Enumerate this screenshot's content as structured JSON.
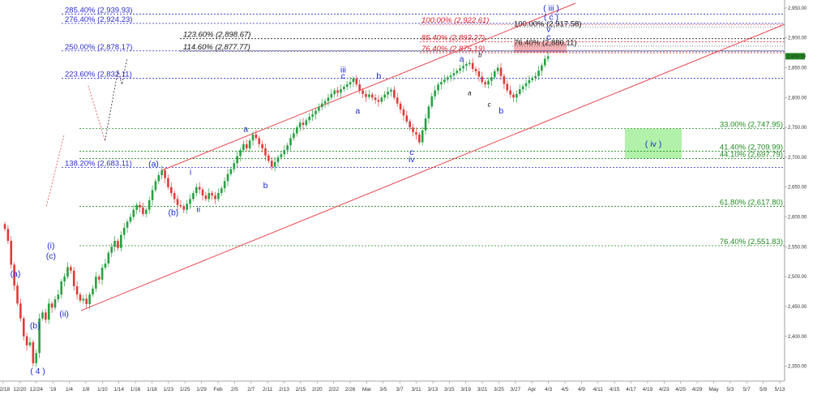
{
  "chart_data": {
    "type": "candlestick",
    "title": "",
    "colors": {
      "up": "#26a141",
      "down": "#e03a3a",
      "fib_blue": "#2b2bd6",
      "fib_green": "#1f8a1f",
      "fib_red": "#e0202a",
      "channel": "#e8474f",
      "wave": "#1c2bd0",
      "target_box_red": "#f5a3a8",
      "target_box_green": "#a8f0a0"
    },
    "x_ticks": [
      "12/18",
      "12/20",
      "12/24",
      "'19",
      "1/4",
      "1/8",
      "1/10",
      "1/14",
      "1/16",
      "1/18",
      "1/23",
      "1/25",
      "1/29",
      "Feb",
      "2/5",
      "2/7",
      "2/11",
      "2/13",
      "2/15",
      "2/20",
      "2/22",
      "2/26",
      "Mar",
      "3/5",
      "3/7",
      "3/11",
      "3/13",
      "3/15",
      "3/19",
      "3/21",
      "3/25",
      "3/27",
      "Apr",
      "4/3",
      "4/5",
      "4/9",
      "4/11",
      "4/15",
      "4/17",
      "4/19",
      "4/23",
      "4/25",
      "4/29",
      "May",
      "5/3",
      "5/7",
      "5/9",
      "5/13"
    ],
    "y_ticks": [
      "2,350.00",
      "2,400.00",
      "2,450.00",
      "2,500.00",
      "2,550.00",
      "2,600.00",
      "2,650.00",
      "2,700.00",
      "2,750.00",
      "2,800.00",
      "2,850.00",
      "2,900.00",
      "2,950.00"
    ],
    "ylim": [
      2325,
      2958
    ],
    "last_price": "2,869.19",
    "fib_blue_left": [
      {
        "label": "285.40% (2,939.93)",
        "value": 2939.93
      },
      {
        "label": "276.40% (2,924.23)",
        "value": 2924.23
      },
      {
        "label": "250.00% (2,878.17)",
        "value": 2878.17
      },
      {
        "label": "223.60% (2,832.11)",
        "value": 2832.11
      },
      {
        "label": "138.20% (2,683.11)",
        "value": 2683.11
      }
    ],
    "fib_black_mid": [
      {
        "label": "123.60% (2,898.67)",
        "value": 2898.67
      },
      {
        "label": "114.60% (2,877.77)",
        "value": 2877.77
      }
    ],
    "fib_red_top": [
      {
        "label": "100.00% (2,922.61)",
        "value": 2922.61
      },
      {
        "label": "85.40% (2,893.27)",
        "value": 2893.27
      },
      {
        "label": "76.40% (2,875.19)",
        "value": 2875.19
      }
    ],
    "fib_small_black": [
      {
        "label": "100.00% (2,917.58)",
        "value": 2917.58
      },
      {
        "label": "76.40% (2,886.11)",
        "value": 2886.11
      }
    ],
    "fib_green_right": [
      {
        "label": "33.00% (2,747.95)",
        "value": 2747.95
      },
      {
        "label": "41.40% (2,709.99)",
        "value": 2709.99
      },
      {
        "label": "44.10% (2,697.79)",
        "value": 2697.79
      },
      {
        "label": "61.80% (2,617.80)",
        "value": 2617.8
      },
      {
        "label": "76.40% (2,551.83)",
        "value": 2551.83
      }
    ],
    "wave_labels": [
      {
        "text": "( 4 )",
        "idx": 2.5,
        "price": 2337
      },
      {
        "text": "(a)",
        "idx": 0.8,
        "price": 2500
      },
      {
        "text": "(b)",
        "idx": 2.3,
        "price": 2413
      },
      {
        "text": "(i)",
        "idx": 3.5,
        "price": 2547
      },
      {
        "text": "(c)",
        "idx": 3.5,
        "price": 2530
      },
      {
        "text": "(ii)",
        "idx": 4.5,
        "price": 2433
      },
      {
        "text": "(a)",
        "idx": 11.3,
        "price": 2684
      },
      {
        "text": "(b)",
        "idx": 12.8,
        "price": 2603
      },
      {
        "text": "i",
        "idx": 14.1,
        "price": 2671
      },
      {
        "text": "ii",
        "idx": 14.7,
        "price": 2608
      },
      {
        "text": "a",
        "idx": 18.3,
        "price": 2743
      },
      {
        "text": "b",
        "idx": 19.8,
        "price": 2648
      },
      {
        "text": "iii",
        "idx": 25.7,
        "price": 2842
      },
      {
        "text": "c",
        "idx": 25.7,
        "price": 2832
      },
      {
        "text": "a",
        "idx": 26.8,
        "price": 2773
      },
      {
        "text": "b",
        "idx": 28.4,
        "price": 2832
      },
      {
        "text": "c",
        "idx": 30.9,
        "price": 2704
      },
      {
        "text": "iv",
        "idx": 30.9,
        "price": 2692
      },
      {
        "text": "a",
        "idx": 34.7,
        "price": 2860
      },
      {
        "text": "b",
        "idx": 37.7,
        "price": 2773
      },
      {
        "text": "v",
        "idx": 41.3,
        "price": 2910
      },
      {
        "text": "c",
        "idx": 41.3,
        "price": 2897
      },
      {
        "text": "( iii )",
        "idx": 41.5,
        "price": 2945
      },
      {
        "text": "( c )",
        "idx": 41.5,
        "price": 2930
      }
    ],
    "wave_labels_small": [
      {
        "text": "b",
        "idx": 36.1,
        "price": 2868
      },
      {
        "text": "a",
        "idx": 35.3,
        "price": 2804
      },
      {
        "text": "c",
        "idx": 36.8,
        "price": 2785
      }
    ],
    "iv_label": "( iv )",
    "closes": [
      2580,
      2560,
      2520,
      2485,
      2455,
      2430,
      2400,
      2385,
      2390,
      2355,
      2372,
      2430,
      2440,
      2428,
      2455,
      2448,
      2462,
      2470,
      2492,
      2500,
      2516,
      2510,
      2484,
      2470,
      2460,
      2463,
      2454,
      2470,
      2480,
      2500,
      2495,
      2515,
      2522,
      2540,
      2550,
      2560,
      2548,
      2570,
      2582,
      2592,
      2600,
      2612,
      2620,
      2616,
      2605,
      2612,
      2628,
      2645,
      2660,
      2670,
      2678,
      2665,
      2650,
      2640,
      2630,
      2620,
      2618,
      2612,
      2622,
      2630,
      2640,
      2650,
      2646,
      2636,
      2630,
      2640,
      2636,
      2630,
      2640,
      2648,
      2660,
      2672,
      2680,
      2690,
      2702,
      2712,
      2722,
      2715,
      2728,
      2738,
      2732,
      2722,
      2715,
      2703,
      2694,
      2684,
      2692,
      2700,
      2705,
      2712,
      2720,
      2732,
      2740,
      2750,
      2758,
      2754,
      2762,
      2768,
      2772,
      2778,
      2784,
      2790,
      2794,
      2800,
      2806,
      2812,
      2808,
      2814,
      2818,
      2822,
      2826,
      2832,
      2822,
      2812,
      2806,
      2801,
      2805,
      2800,
      2796,
      2793,
      2800,
      2805,
      2810,
      2813,
      2800,
      2790,
      2780,
      2770,
      2760,
      2750,
      2742,
      2738,
      2725,
      2745,
      2765,
      2785,
      2802,
      2812,
      2822,
      2826,
      2830,
      2834,
      2837,
      2841,
      2845,
      2849,
      2853,
      2856,
      2858,
      2848,
      2844,
      2835,
      2826,
      2822,
      2828,
      2834,
      2844,
      2850,
      2836,
      2823,
      2812,
      2805,
      2800,
      2806,
      2814,
      2819,
      2824,
      2829,
      2833,
      2836,
      2845,
      2854,
      2865,
      2869
    ]
  }
}
